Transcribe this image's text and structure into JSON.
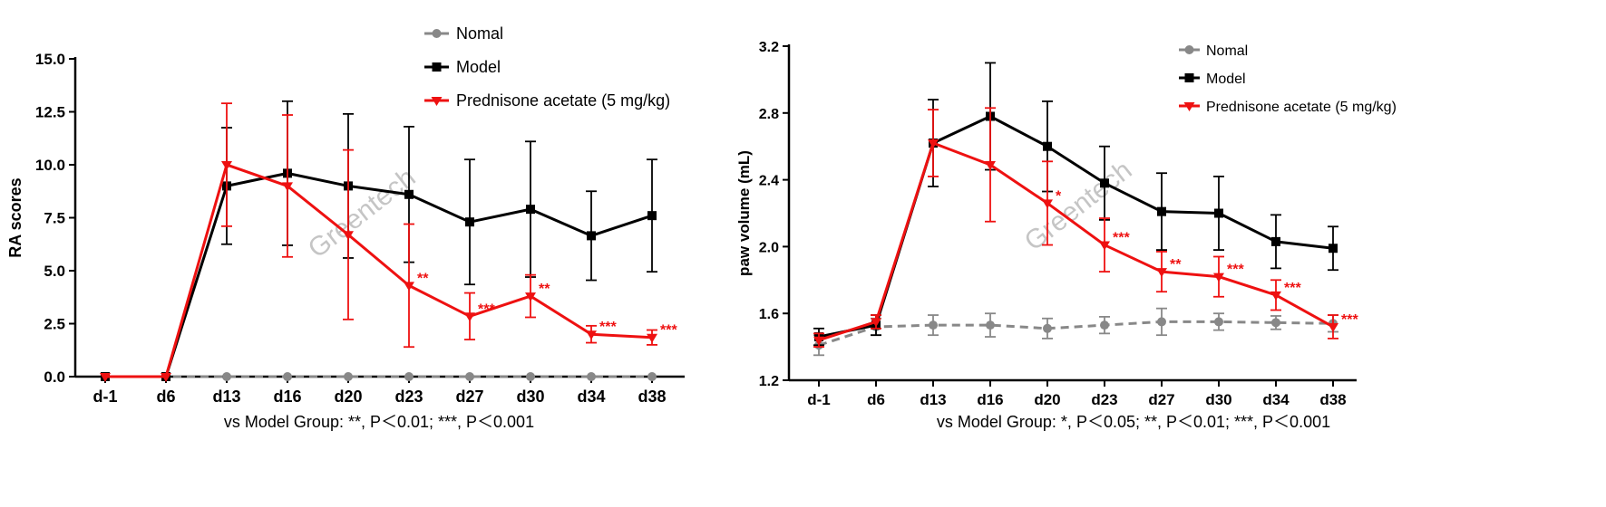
{
  "watermark": "Greentech",
  "chart_data": [
    {
      "type": "line",
      "id": "left",
      "ylabel": "RA scores",
      "xlabel": "",
      "categories": [
        "d-1",
        "d6",
        "d13",
        "d16",
        "d20",
        "d23",
        "d27",
        "d30",
        "d34",
        "d38"
      ],
      "ylim": [
        0,
        15
      ],
      "yticks": [
        "0.0",
        "2.5",
        "5.0",
        "7.5",
        "10.0",
        "12.5",
        "15.0"
      ],
      "yticks_values": [
        0,
        2.5,
        5,
        7.5,
        10,
        12.5,
        15
      ],
      "footnote": "vs Model Group: **, P＜0.01; ***, P＜0.001",
      "legend_position": "top-right",
      "series": [
        {
          "name": "Nomal",
          "color": "#888888",
          "marker": "circle",
          "dashed": true,
          "values": [
            0,
            0,
            0,
            0,
            0,
            0,
            0,
            0,
            0,
            0
          ],
          "err": [
            0,
            0,
            0,
            0,
            0,
            0,
            0,
            0,
            0,
            0
          ],
          "sig": [
            "",
            "",
            "",
            "",
            "",
            "",
            "",
            "",
            "",
            ""
          ]
        },
        {
          "name": "Model",
          "color": "#000000",
          "marker": "square",
          "dashed": false,
          "values": [
            0,
            0,
            9.0,
            9.6,
            9.0,
            8.6,
            7.3,
            7.9,
            6.65,
            7.6
          ],
          "err": [
            0,
            0,
            2.75,
            3.4,
            3.4,
            3.2,
            2.95,
            3.2,
            2.1,
            2.65
          ],
          "sig": [
            "",
            "",
            "",
            "",
            "",
            "",
            "",
            "",
            "",
            ""
          ]
        },
        {
          "name": "Prednisone acetate (5 mg/kg)",
          "color": "#ee1111",
          "marker": "triangle-down",
          "dashed": false,
          "values": [
            0,
            0,
            10.0,
            9.0,
            6.7,
            4.3,
            2.85,
            3.8,
            2.0,
            1.85
          ],
          "err": [
            0,
            0,
            2.9,
            3.35,
            4.0,
            2.9,
            1.1,
            1.0,
            0.4,
            0.35
          ],
          "sig": [
            "",
            "",
            "",
            "",
            "",
            "**",
            "***",
            "**",
            "***",
            "***"
          ]
        }
      ]
    },
    {
      "type": "line",
      "id": "right",
      "ylabel": "paw volume (mL)",
      "xlabel": "",
      "categories": [
        "d-1",
        "d6",
        "d13",
        "d16",
        "d20",
        "d23",
        "d27",
        "d30",
        "d34",
        "d38"
      ],
      "ylim": [
        1.2,
        3.2
      ],
      "yticks": [
        "1.2",
        "1.6",
        "2.0",
        "2.4",
        "2.8",
        "3.2"
      ],
      "yticks_values": [
        1.2,
        1.6,
        2.0,
        2.4,
        2.8,
        3.2
      ],
      "footnote": "vs Model Group: *, P＜0.05; **, P＜0.01; ***, P＜0.001",
      "legend_position": "top-right",
      "series": [
        {
          "name": "Nomal",
          "color": "#888888",
          "marker": "circle",
          "dashed": true,
          "values": [
            1.41,
            1.52,
            1.53,
            1.53,
            1.51,
            1.53,
            1.55,
            1.55,
            1.545,
            1.54
          ],
          "err": [
            0.06,
            0.05,
            0.06,
            0.07,
            0.06,
            0.05,
            0.08,
            0.05,
            0.04,
            0.05
          ],
          "sig": [
            "",
            "",
            "",
            "",
            "",
            "",
            "",
            "",
            "",
            ""
          ]
        },
        {
          "name": "Model",
          "color": "#000000",
          "marker": "square",
          "dashed": false,
          "values": [
            1.46,
            1.53,
            2.62,
            2.78,
            2.6,
            2.38,
            2.21,
            2.2,
            2.03,
            1.99
          ],
          "err": [
            0.05,
            0.06,
            0.26,
            0.32,
            0.27,
            0.22,
            0.23,
            0.22,
            0.16,
            0.13
          ],
          "sig": [
            "",
            "",
            "",
            "",
            "",
            "",
            "",
            "",
            "",
            ""
          ]
        },
        {
          "name": "Prednisone acetate (5 mg/kg)",
          "color": "#ee1111",
          "marker": "triangle-down",
          "dashed": false,
          "values": [
            1.44,
            1.55,
            2.62,
            2.49,
            2.26,
            2.01,
            1.85,
            1.82,
            1.71,
            1.52
          ],
          "err": [
            0.04,
            0.04,
            0.2,
            0.34,
            0.25,
            0.16,
            0.12,
            0.12,
            0.09,
            0.07
          ],
          "sig": [
            "",
            "",
            "",
            "",
            "*",
            "***",
            "**",
            "***",
            "***",
            "***"
          ]
        }
      ]
    }
  ]
}
